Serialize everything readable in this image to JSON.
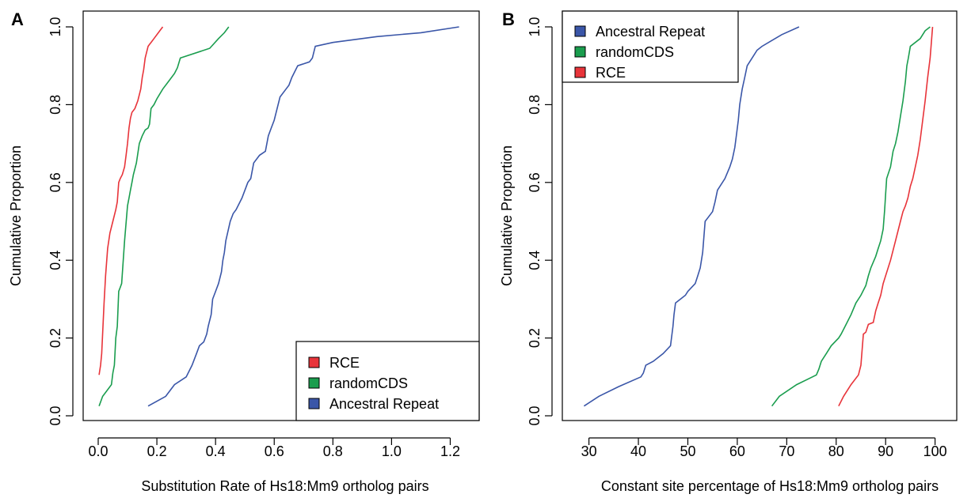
{
  "chart_data": [
    {
      "panel": "A",
      "type": "line",
      "title": "",
      "xlabel": "Substitution Rate of Hs18:Mm9 ortholog pairs",
      "ylabel": "Cumulative Proportion",
      "xlim": [
        0.0,
        1.25
      ],
      "ylim": [
        0.0,
        1.0
      ],
      "xticks": [
        "0.0",
        "0.2",
        "0.4",
        "0.6",
        "0.8",
        "1.0",
        "1.2"
      ],
      "yticks": [
        "0.0",
        "0.2",
        "0.4",
        "0.6",
        "0.8",
        "1.0"
      ],
      "grid": false,
      "legend": "bottom-right",
      "legend_order": [
        "RCE",
        "randomCDS",
        "Ancestral Repeat"
      ],
      "series": [
        {
          "name": "RCE",
          "color": "#e8343a",
          "x": [
            0.003,
            0.008,
            0.012,
            0.02,
            0.025,
            0.032,
            0.04,
            0.05,
            0.06,
            0.065,
            0.07,
            0.075,
            0.082,
            0.09,
            0.095,
            0.1,
            0.105,
            0.11,
            0.115,
            0.125,
            0.135,
            0.145,
            0.15,
            0.155,
            0.16,
            0.17,
            0.175,
            0.18,
            0.19,
            0.21,
            0.22
          ],
          "y": [
            0.105,
            0.13,
            0.16,
            0.29,
            0.36,
            0.43,
            0.47,
            0.5,
            0.53,
            0.55,
            0.6,
            0.61,
            0.62,
            0.64,
            0.67,
            0.7,
            0.74,
            0.765,
            0.78,
            0.79,
            0.81,
            0.84,
            0.87,
            0.89,
            0.92,
            0.95,
            0.955,
            0.96,
            0.97,
            0.99,
            1.0
          ]
        },
        {
          "name": "randomCDS",
          "color": "#1a9d4e",
          "x": [
            0.003,
            0.015,
            0.025,
            0.045,
            0.05,
            0.055,
            0.06,
            0.065,
            0.07,
            0.075,
            0.08,
            0.09,
            0.1,
            0.105,
            0.11,
            0.115,
            0.12,
            0.13,
            0.14,
            0.15,
            0.16,
            0.17,
            0.175,
            0.18,
            0.19,
            0.2,
            0.22,
            0.24,
            0.26,
            0.27,
            0.28,
            0.38,
            0.41,
            0.43,
            0.445
          ],
          "y": [
            0.025,
            0.05,
            0.06,
            0.08,
            0.11,
            0.13,
            0.2,
            0.23,
            0.32,
            0.33,
            0.34,
            0.45,
            0.54,
            0.56,
            0.58,
            0.6,
            0.62,
            0.65,
            0.7,
            0.72,
            0.735,
            0.74,
            0.75,
            0.79,
            0.8,
            0.815,
            0.84,
            0.86,
            0.88,
            0.895,
            0.92,
            0.945,
            0.97,
            0.985,
            1.0
          ]
        },
        {
          "name": "Ancestral Repeat",
          "color": "#3a56a8",
          "x": [
            0.17,
            0.23,
            0.26,
            0.3,
            0.32,
            0.335,
            0.345,
            0.36,
            0.37,
            0.375,
            0.385,
            0.39,
            0.4,
            0.41,
            0.42,
            0.425,
            0.43,
            0.435,
            0.45,
            0.46,
            0.47,
            0.49,
            0.51,
            0.52,
            0.53,
            0.55,
            0.57,
            0.58,
            0.59,
            0.6,
            0.61,
            0.62,
            0.64,
            0.65,
            0.66,
            0.68,
            0.7,
            0.72,
            0.73,
            0.74,
            0.8,
            0.95,
            1.1,
            1.23
          ],
          "y": [
            0.025,
            0.05,
            0.08,
            0.1,
            0.13,
            0.16,
            0.18,
            0.19,
            0.21,
            0.23,
            0.26,
            0.3,
            0.32,
            0.34,
            0.37,
            0.4,
            0.42,
            0.45,
            0.5,
            0.52,
            0.53,
            0.56,
            0.6,
            0.61,
            0.65,
            0.67,
            0.68,
            0.72,
            0.74,
            0.76,
            0.79,
            0.82,
            0.84,
            0.85,
            0.87,
            0.9,
            0.905,
            0.91,
            0.92,
            0.95,
            0.96,
            0.975,
            0.985,
            1.0
          ]
        }
      ]
    },
    {
      "panel": "B",
      "type": "line",
      "title": "",
      "xlabel": "Constant site percentage of Hs18:Mm9 ortholog pairs",
      "ylabel": "Cumulative Proportion",
      "xlim": [
        27.5,
        101.5
      ],
      "ylim": [
        0.0,
        1.0
      ],
      "xticks": [
        "30",
        "40",
        "50",
        "60",
        "70",
        "80",
        "90",
        "100"
      ],
      "yticks": [
        "0.0",
        "0.2",
        "0.4",
        "0.6",
        "0.8",
        "1.0"
      ],
      "grid": false,
      "legend": "top-left",
      "legend_order": [
        "Ancestral Repeat",
        "randomCDS",
        "RCE"
      ],
      "series": [
        {
          "name": "Ancestral Repeat",
          "color": "#3a56a8",
          "x": [
            29.0,
            32.0,
            36.0,
            40.5,
            41.0,
            41.5,
            43.0,
            45.0,
            46.5,
            47.0,
            47.2,
            47.5,
            49.5,
            50.0,
            51.5,
            52.0,
            52.5,
            53.0,
            53.5,
            55.0,
            55.5,
            56.0,
            57.5,
            58.5,
            59.0,
            59.5,
            59.8,
            60.2,
            60.5,
            61.0,
            61.5,
            62.0,
            63.0,
            64.0,
            65.0,
            67.0,
            69.0,
            72.5
          ],
          "y": [
            0.025,
            0.05,
            0.075,
            0.1,
            0.11,
            0.13,
            0.14,
            0.16,
            0.18,
            0.23,
            0.26,
            0.29,
            0.31,
            0.32,
            0.34,
            0.36,
            0.38,
            0.42,
            0.5,
            0.525,
            0.55,
            0.58,
            0.61,
            0.64,
            0.66,
            0.69,
            0.72,
            0.76,
            0.8,
            0.84,
            0.87,
            0.9,
            0.92,
            0.94,
            0.95,
            0.965,
            0.98,
            1.0
          ]
        },
        {
          "name": "randomCDS",
          "color": "#1a9d4e",
          "x": [
            67.0,
            68.5,
            72.0,
            76.0,
            76.5,
            77.0,
            78.0,
            79.0,
            80.5,
            81.0,
            82.0,
            83.0,
            84.0,
            85.0,
            86.0,
            86.5,
            87.0,
            88.0,
            88.5,
            89.0,
            89.5,
            89.8,
            90.0,
            90.2,
            91.0,
            91.5,
            92.0,
            92.5,
            93.0,
            93.5,
            94.0,
            94.3,
            94.6,
            95.0,
            97.0,
            98.0,
            99.0
          ],
          "y": [
            0.025,
            0.05,
            0.08,
            0.105,
            0.12,
            0.14,
            0.16,
            0.18,
            0.2,
            0.21,
            0.235,
            0.26,
            0.29,
            0.31,
            0.335,
            0.36,
            0.38,
            0.41,
            0.43,
            0.45,
            0.48,
            0.53,
            0.57,
            0.61,
            0.64,
            0.68,
            0.7,
            0.73,
            0.77,
            0.81,
            0.86,
            0.9,
            0.92,
            0.95,
            0.97,
            0.99,
            1.0
          ]
        },
        {
          "name": "RCE",
          "color": "#e8343a",
          "x": [
            80.5,
            81.5,
            83.0,
            84.5,
            85.0,
            85.5,
            86.0,
            86.5,
            87.5,
            88.0,
            88.5,
            89.0,
            89.5,
            90.0,
            91.0,
            92.0,
            93.0,
            93.5,
            94.0,
            94.5,
            95.0,
            95.5,
            96.0,
            96.5,
            97.0,
            97.5,
            98.0,
            98.5,
            99.0,
            99.5
          ],
          "y": [
            0.025,
            0.05,
            0.08,
            0.105,
            0.13,
            0.21,
            0.215,
            0.235,
            0.24,
            0.27,
            0.29,
            0.31,
            0.34,
            0.36,
            0.4,
            0.45,
            0.5,
            0.525,
            0.54,
            0.56,
            0.59,
            0.61,
            0.64,
            0.67,
            0.71,
            0.76,
            0.81,
            0.87,
            0.92,
            1.0
          ]
        }
      ]
    }
  ],
  "panels": [
    {
      "letter": "A"
    },
    {
      "letter": "B"
    }
  ],
  "legend_swatch_border": "#000000"
}
